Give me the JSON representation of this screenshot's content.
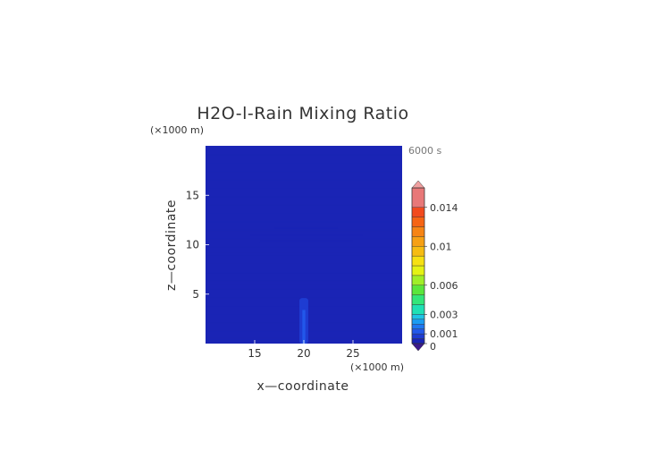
{
  "chart_data": {
    "type": "heatmap",
    "title": "H2O-l-Rain Mixing Ratio",
    "xlabel": "x—coordinate",
    "ylabel": "z—coordinate",
    "x_unit": "(×1000 m)",
    "y_unit": "(×1000 m)",
    "time_label": "6000 s",
    "xlim": [
      10,
      30
    ],
    "ylim": [
      0,
      20
    ],
    "x_ticks": [
      15,
      20,
      25
    ],
    "y_ticks": [
      5,
      10,
      15
    ],
    "grid": false,
    "colorbar": {
      "position": "right",
      "min": 0,
      "max": 0.016,
      "tick_values": [
        0,
        0.001,
        0.003,
        0.006,
        0.01,
        0.014
      ],
      "tick_labels": [
        "0",
        "0.001",
        "0.003",
        "0.006",
        "0.01",
        "0.014"
      ],
      "boundaries": [
        0,
        0.0005,
        0.001,
        0.0015,
        0.002,
        0.0025,
        0.003,
        0.004,
        0.005,
        0.006,
        0.007,
        0.008,
        0.009,
        0.01,
        0.011,
        0.012,
        0.013,
        0.014,
        0.016
      ],
      "colors": [
        "#1a24b5",
        "#1e3cd2",
        "#2258ea",
        "#1e78f2",
        "#1a9cf2",
        "#1ec4e6",
        "#1ee0b4",
        "#32e67a",
        "#5ae63c",
        "#a0ee28",
        "#e4f214",
        "#f6e012",
        "#f6bc12",
        "#f6a014",
        "#f68414",
        "#f66414",
        "#f24a1e",
        "#e87878"
      ],
      "under_color": "#3c1a8c",
      "over_color": "#f0a0a0"
    },
    "field": {
      "background_value": 0.00015,
      "layer_band_value": 0.00035,
      "cloud_top_value": 0.0004,
      "rain_column": {
        "x_center": 20,
        "z_top": 4.6,
        "peak_value": 0.0012,
        "core_value": 0.0008,
        "edge_value": 0.0006
      }
    }
  }
}
